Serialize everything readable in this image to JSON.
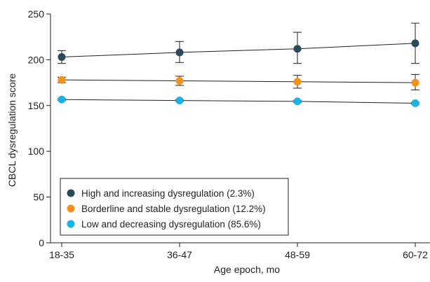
{
  "chart_data": {
    "type": "line",
    "title": "",
    "xlabel": "Age epoch, mo",
    "ylabel": "CBCL dysregulation score",
    "categories": [
      "18-35",
      "36-47",
      "48-59",
      "60-72"
    ],
    "ylim": [
      0,
      250
    ],
    "yticks": [
      0,
      50,
      100,
      150,
      200,
      250
    ],
    "grid": false,
    "legend_position": "bottom-left",
    "series": [
      {
        "name": "High and increasing dysregulation (2.3%)",
        "color": "#2b4a57",
        "values": [
          203,
          208,
          212,
          218
        ],
        "error_low": [
          196,
          197,
          196,
          196
        ],
        "error_high": [
          210,
          220,
          230,
          240
        ]
      },
      {
        "name": "Borderline and stable dysregulation (12.2%)",
        "color": "#f5921e",
        "values": [
          178,
          177,
          176,
          175
        ],
        "error_low": [
          175,
          172,
          169,
          167
        ],
        "error_high": [
          181,
          182,
          183,
          184
        ]
      },
      {
        "name": "Low and decreasing dysregulation (85.6%)",
        "color": "#1bb3e6",
        "values": [
          156.5,
          155.5,
          154.5,
          152.5
        ],
        "error_low": [
          155.5,
          154.5,
          153.5,
          151.5
        ],
        "error_high": [
          157.5,
          156.5,
          155.5,
          153.5
        ]
      }
    ]
  }
}
